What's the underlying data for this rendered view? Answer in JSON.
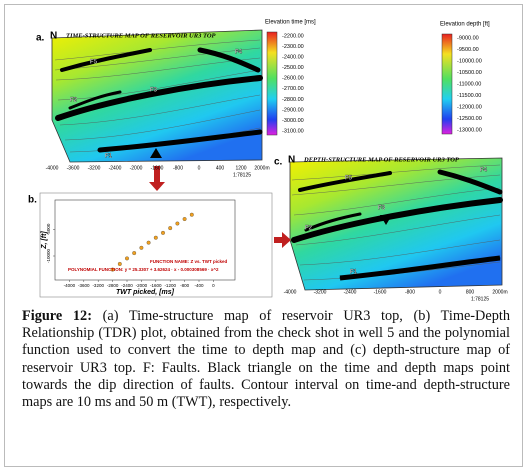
{
  "figure": {
    "panel_a": {
      "label": "a.",
      "north": "N",
      "title": "TIME-STRUCTURE MAP OF RESERVOIR UR3 TOP",
      "colorbar_title": "Elevation time [ms]",
      "colorbar_labels": [
        "-2200.00",
        "-2300.00",
        "-2400.00",
        "-2500.00",
        "-2600.00",
        "-2700.00",
        "-2800.00",
        "-2900.00",
        "-3000.00",
        "-3100.00"
      ],
      "faults": [
        "F5",
        "F4",
        "F3",
        "F2",
        "F1"
      ],
      "x_ticks": [
        "-4000",
        "-3600",
        "-3200",
        "-2400",
        "-2000",
        "-1600",
        "-800",
        "0",
        "400",
        "1200",
        "2000m"
      ],
      "scale": "1:78125"
    },
    "panel_b": {
      "label": "b.",
      "type": "scatter",
      "xlabel": "TWT picked, [ms]",
      "ylabel": "Z, [ft]",
      "color": "#f0a020",
      "x": [
        -2800,
        -2600,
        -2400,
        -2200,
        -2000,
        -1800,
        -1600,
        -1400,
        -1200,
        -1000,
        -800,
        -600
      ],
      "y": [
        -12550,
        -11490,
        -10450,
        -9450,
        -8460,
        -7500,
        -6570,
        -5660,
        -4770,
        -3910,
        -3070,
        -2260
      ],
      "xlim": [
        -4400,
        600
      ],
      "ylim": [
        -14500,
        500
      ],
      "xticks": [
        -4000,
        -3600,
        -3200,
        -2800,
        -2400,
        -2000,
        -1600,
        -1200,
        -800,
        -400,
        0
      ],
      "yticks": [
        -5000,
        -10000
      ],
      "annotations": [
        "FUNCTION NAME: Z vs. TWT picked",
        "POLYNOMIAL FUNCTION: y = 25.3307 + 3.62624 · x - 0.000308569 · x^2"
      ]
    },
    "panel_c": {
      "label": "c.",
      "north": "N",
      "title": "DEPTH-STRUCTURE MAP OF RESERVOIR UR3 TOP",
      "colorbar_title": "Elevation depth [ft]",
      "colorbar_labels": [
        "-9000.00",
        "-9500.00",
        "-10000.00",
        "-10500.00",
        "-11000.00",
        "-11500.00",
        "-12000.00",
        "-12500.00",
        "-13000.00"
      ],
      "faults": [
        "F5",
        "F4",
        "F3",
        "F2",
        "F1"
      ],
      "x_ticks": [
        "-4000",
        "-3200",
        "-2400",
        "-1600",
        "-800",
        "0",
        "800",
        "2000m"
      ],
      "scale": "1:78125"
    }
  },
  "caption": {
    "label": "Figure 12:",
    "text": "(a) Time-structure map of reservoir UR3 top, (b) Time-Depth Relationship (TDR) plot, obtained from the check shot in well 5 and the polynomial function used to convert the time to depth map and (c) depth-structure map of reservoir UR3 top. F: Faults. Black triangle on the time and depth maps point towards the dip direction of faults. Contour interval on time-and depth-structure maps are 10 ms and 50 m (TWT), respectively."
  }
}
